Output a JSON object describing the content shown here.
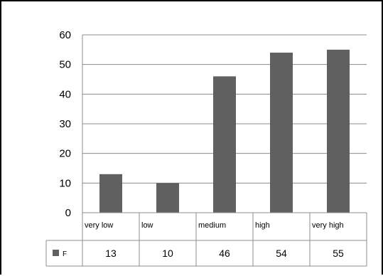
{
  "chart_data": {
    "type": "bar",
    "categories": [
      "very low",
      "low",
      "medium",
      "high",
      "very high"
    ],
    "series": [
      {
        "name": "F",
        "values": [
          13,
          10,
          46,
          54,
          55
        ],
        "color": "#606060"
      }
    ],
    "ylim": [
      0,
      60
    ],
    "yticks": [
      0,
      10,
      20,
      30,
      40,
      50,
      60
    ],
    "grid": true,
    "legend": "data-table",
    "data_table": true
  }
}
